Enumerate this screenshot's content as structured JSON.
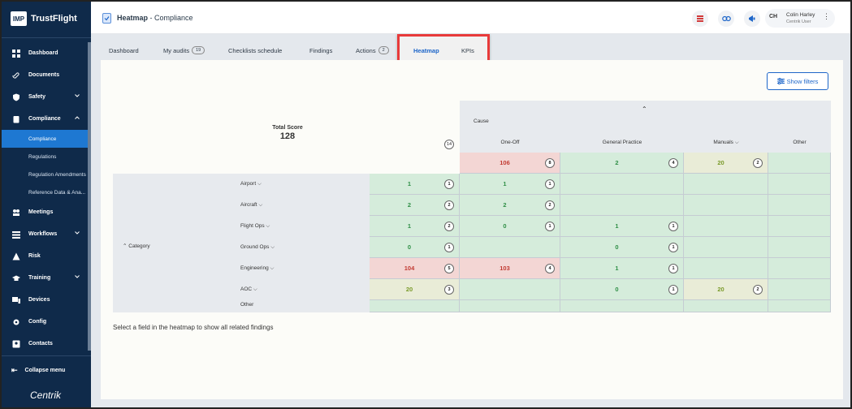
{
  "app": {
    "logo_mark": "IMP",
    "logo_text": "TrustFlight",
    "brand": "Centrik"
  },
  "sidebar": {
    "items": [
      {
        "label": "Dashboard",
        "icon": "dashboard-icon"
      },
      {
        "label": "Documents",
        "icon": "paperclip-icon"
      },
      {
        "label": "Safety",
        "icon": "shield-icon",
        "expandable": true
      },
      {
        "label": "Compliance",
        "icon": "clipboard-icon",
        "expandable": true,
        "open": true
      },
      {
        "label": "Meetings",
        "icon": "people-icon"
      },
      {
        "label": "Workflows",
        "icon": "workflow-icon",
        "expandable": true
      },
      {
        "label": "Risk",
        "icon": "warning-icon"
      },
      {
        "label": "Training",
        "icon": "graduation-cap-icon",
        "expandable": true
      },
      {
        "label": "Devices",
        "icon": "devices-icon"
      },
      {
        "label": "Config",
        "icon": "config-icon"
      },
      {
        "label": "Contacts",
        "icon": "contacts-icon"
      }
    ],
    "sub_items": [
      "Compliance",
      "Regulations",
      "Regulation Amendments",
      "Reference Data & Ana..."
    ],
    "collapse_label": "Collapse menu"
  },
  "topbar": {
    "title": "Heatmap",
    "separator": " - ",
    "section": "Compliance",
    "user": {
      "initials": "CH",
      "name": "Colin Harley",
      "role": "Centrik User"
    }
  },
  "tabs": [
    {
      "label": "Dashboard"
    },
    {
      "label": "My audits",
      "count": "19"
    },
    {
      "label": "Checklists schedule"
    },
    {
      "label": "Findings"
    },
    {
      "label": "Actions",
      "count": "2"
    },
    {
      "label": "Heatmap",
      "active": true
    },
    {
      "label": "KPIs"
    }
  ],
  "filters_button": "Show filters",
  "heatmap": {
    "total_label": "Total Score",
    "total_value": "128",
    "cause_label": "Cause",
    "category_label": "Category",
    "total_col_count": "14",
    "columns": [
      {
        "label": "One-Off"
      },
      {
        "label": "General Practice"
      },
      {
        "label": "Manuals",
        "dropdown": true
      },
      {
        "label": "Other"
      }
    ],
    "column_totals": [
      {
        "value": "106",
        "count": "8",
        "level": "red"
      },
      {
        "value": "2",
        "count": "4",
        "level": "green"
      },
      {
        "value": "20",
        "count": "2",
        "level": "yellow"
      },
      {
        "value": "",
        "count": "",
        "level": "green"
      }
    ],
    "rows": [
      {
        "label": "Airport",
        "total": "1",
        "count": "1",
        "level": "green",
        "cells": [
          {
            "value": "1",
            "count": "1",
            "level": "green"
          },
          {
            "value": "",
            "count": "",
            "level": "green"
          },
          {
            "value": "",
            "count": "",
            "level": "green"
          },
          {
            "value": "",
            "count": "",
            "level": "green"
          }
        ]
      },
      {
        "label": "Aircraft",
        "total": "2",
        "count": "2",
        "level": "green",
        "cells": [
          {
            "value": "2",
            "count": "2",
            "level": "green"
          },
          {
            "value": "",
            "count": "",
            "level": "green"
          },
          {
            "value": "",
            "count": "",
            "level": "green"
          },
          {
            "value": "",
            "count": "",
            "level": "green"
          }
        ]
      },
      {
        "label": "Flight Ops",
        "total": "1",
        "count": "2",
        "level": "green",
        "cells": [
          {
            "value": "0",
            "count": "1",
            "level": "green"
          },
          {
            "value": "1",
            "count": "1",
            "level": "green"
          },
          {
            "value": "",
            "count": "",
            "level": "green"
          },
          {
            "value": "",
            "count": "",
            "level": "green"
          }
        ]
      },
      {
        "label": "Ground Ops",
        "total": "0",
        "count": "1",
        "level": "green",
        "cells": [
          {
            "value": "",
            "count": "",
            "level": "green"
          },
          {
            "value": "0",
            "count": "1",
            "level": "green"
          },
          {
            "value": "",
            "count": "",
            "level": "green"
          },
          {
            "value": "",
            "count": "",
            "level": "green"
          }
        ]
      },
      {
        "label": "Engineering",
        "total": "104",
        "count": "5",
        "level": "red",
        "cells": [
          {
            "value": "103",
            "count": "4",
            "level": "red"
          },
          {
            "value": "1",
            "count": "1",
            "level": "green"
          },
          {
            "value": "",
            "count": "",
            "level": "green"
          },
          {
            "value": "",
            "count": "",
            "level": "green"
          }
        ]
      },
      {
        "label": "AOC",
        "total": "20",
        "count": "3",
        "level": "yellow",
        "cells": [
          {
            "value": "",
            "count": "",
            "level": "green"
          },
          {
            "value": "0",
            "count": "1",
            "level": "green"
          },
          {
            "value": "20",
            "count": "2",
            "level": "yellow"
          },
          {
            "value": "",
            "count": "",
            "level": "green"
          }
        ]
      },
      {
        "label": "Other",
        "total": "",
        "count": "",
        "level": "green",
        "cells": [
          {
            "value": "",
            "count": "",
            "level": "green"
          },
          {
            "value": "",
            "count": "",
            "level": "green"
          },
          {
            "value": "",
            "count": "",
            "level": "green"
          },
          {
            "value": "",
            "count": "",
            "level": "green"
          }
        ]
      }
    ]
  },
  "info_text": "Select a field in the heatmap to show all related findings",
  "colors": {
    "sidebar": "#0f2a4a",
    "accent": "#1e66c9",
    "highlight": "#e83a3a",
    "green": "#2f8f46",
    "red": "#c23a32",
    "yellow": "#7a9a2a"
  }
}
